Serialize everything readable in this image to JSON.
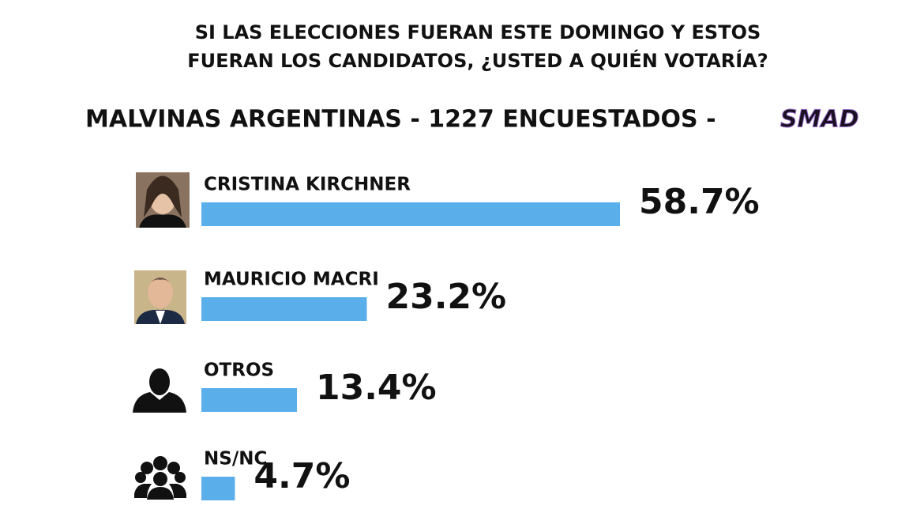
{
  "chart_data": {
    "type": "bar",
    "title": [
      "SI LAS ELECCIONES FUERAN ESTE DOMINGO Y ESTOS",
      "FUERAN LOS CANDIDATOS, ¿USTED A QUIÉN VOTARÍA?"
    ],
    "subtitle": "MALVINAS ARGENTINAS - 1227 ENCUESTADOS -",
    "source": "SMAD",
    "categories": [
      "CRISTINA KIRCHNER",
      "MAURICIO MACRI",
      "OTROS",
      "NS/NC"
    ],
    "values": [
      58.7,
      23.2,
      13.4,
      4.7
    ],
    "value_labels": [
      "58.7%",
      "23.2%",
      "13.4%",
      "4.7%"
    ],
    "color": "#5aaeea"
  }
}
